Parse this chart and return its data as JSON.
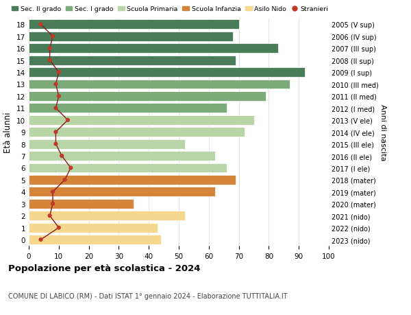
{
  "ages": [
    18,
    17,
    16,
    15,
    14,
    13,
    12,
    11,
    10,
    9,
    8,
    7,
    6,
    5,
    4,
    3,
    2,
    1,
    0
  ],
  "bar_values": [
    70,
    68,
    83,
    69,
    92,
    87,
    79,
    66,
    75,
    72,
    52,
    62,
    66,
    69,
    62,
    35,
    52,
    43,
    44
  ],
  "stranieri_values": [
    4,
    8,
    7,
    7,
    10,
    9,
    10,
    9,
    13,
    9,
    9,
    11,
    14,
    12,
    8,
    8,
    7,
    10,
    4
  ],
  "right_labels": [
    "2005 (V sup)",
    "2006 (IV sup)",
    "2007 (III sup)",
    "2008 (II sup)",
    "2009 (I sup)",
    "2010 (III med)",
    "2011 (II med)",
    "2012 (I med)",
    "2013 (V ele)",
    "2014 (IV ele)",
    "2015 (III ele)",
    "2016 (II ele)",
    "2017 (I ele)",
    "2018 (mater)",
    "2019 (mater)",
    "2020 (mater)",
    "2021 (nido)",
    "2022 (nido)",
    "2023 (nido)"
  ],
  "bar_colors": [
    "#4a7c59",
    "#4a7c59",
    "#4a7c59",
    "#4a7c59",
    "#4a7c59",
    "#7aab78",
    "#7aab78",
    "#7aab78",
    "#b8d5a8",
    "#b8d5a8",
    "#b8d5a8",
    "#b8d5a8",
    "#b8d5a8",
    "#d4853a",
    "#d4853a",
    "#d4853a",
    "#f5d88e",
    "#f5d88e",
    "#f5d88e"
  ],
  "legend_labels": [
    "Sec. II grado",
    "Sec. I grado",
    "Scuola Primaria",
    "Scuola Infanzia",
    "Asilo Nido",
    "Stranieri"
  ],
  "legend_colors": [
    "#4a7c59",
    "#7aab78",
    "#b8d5a8",
    "#d4853a",
    "#f5d88e",
    "#c0392b"
  ],
  "stranieri_color": "#c0392b",
  "stranieri_line_color": "#8b1a1a",
  "ylabel": "Età alunni",
  "right_ylabel": "Anni di nascita",
  "title": "Popolazione per età scolastica - 2024",
  "subtitle": "COMUNE DI LABICO (RM) - Dati ISTAT 1° gennaio 2024 - Elaborazione TUTTITALIA.IT",
  "xlim": [
    0,
    100
  ],
  "xticks": [
    0,
    10,
    20,
    30,
    40,
    50,
    60,
    70,
    80,
    90,
    100
  ],
  "background_color": "#ffffff",
  "grid_color": "#dddddd"
}
